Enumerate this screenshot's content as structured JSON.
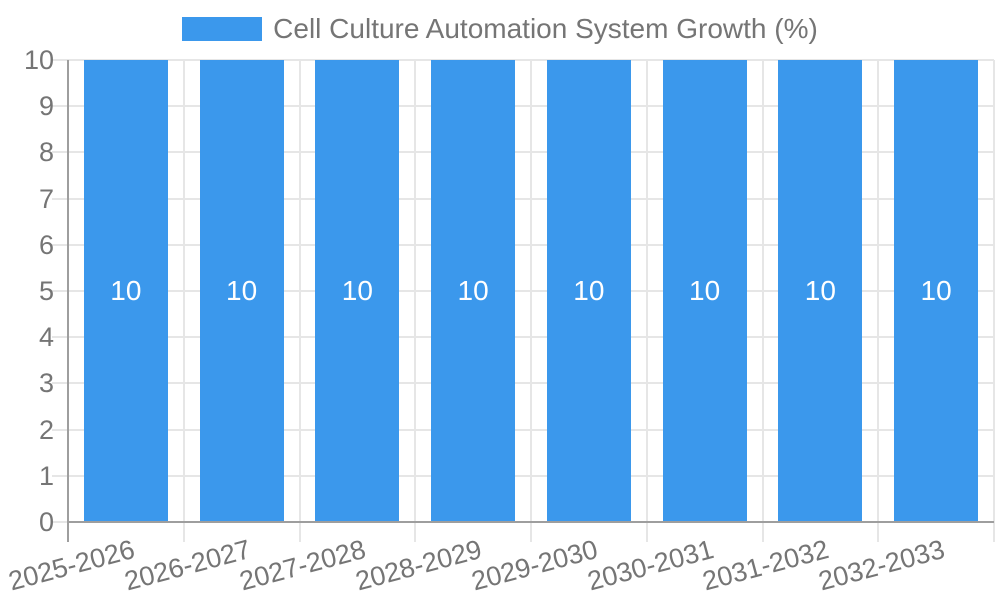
{
  "legend": {
    "label": "Cell Culture Automation System Growth (%)"
  },
  "colors": {
    "bar": "#3b98ec",
    "grid": "#e6e6e6",
    "axis": "#9e9e9e",
    "tick_label": "#757575",
    "bar_value_label": "#ffffff",
    "background": "#ffffff"
  },
  "chart_data": {
    "type": "bar",
    "title": "Cell Culture Automation System Growth (%)",
    "categories": [
      "2025-2026",
      "2026-2027",
      "2027-2028",
      "2028-2029",
      "2029-2030",
      "2030-2031",
      "2031-2032",
      "2032-2033"
    ],
    "series": [
      {
        "name": "Cell Culture Automation System Growth (%)",
        "values": [
          10,
          10,
          10,
          10,
          10,
          10,
          10,
          10
        ]
      }
    ],
    "bar_value_labels": [
      "10",
      "10",
      "10",
      "10",
      "10",
      "10",
      "10",
      "10"
    ],
    "xlabel": "",
    "ylabel": "",
    "ylim": [
      0,
      10
    ],
    "y_ticks": [
      0,
      1,
      2,
      3,
      4,
      5,
      6,
      7,
      8,
      9,
      10
    ],
    "grid": true,
    "legend_position": "top"
  }
}
